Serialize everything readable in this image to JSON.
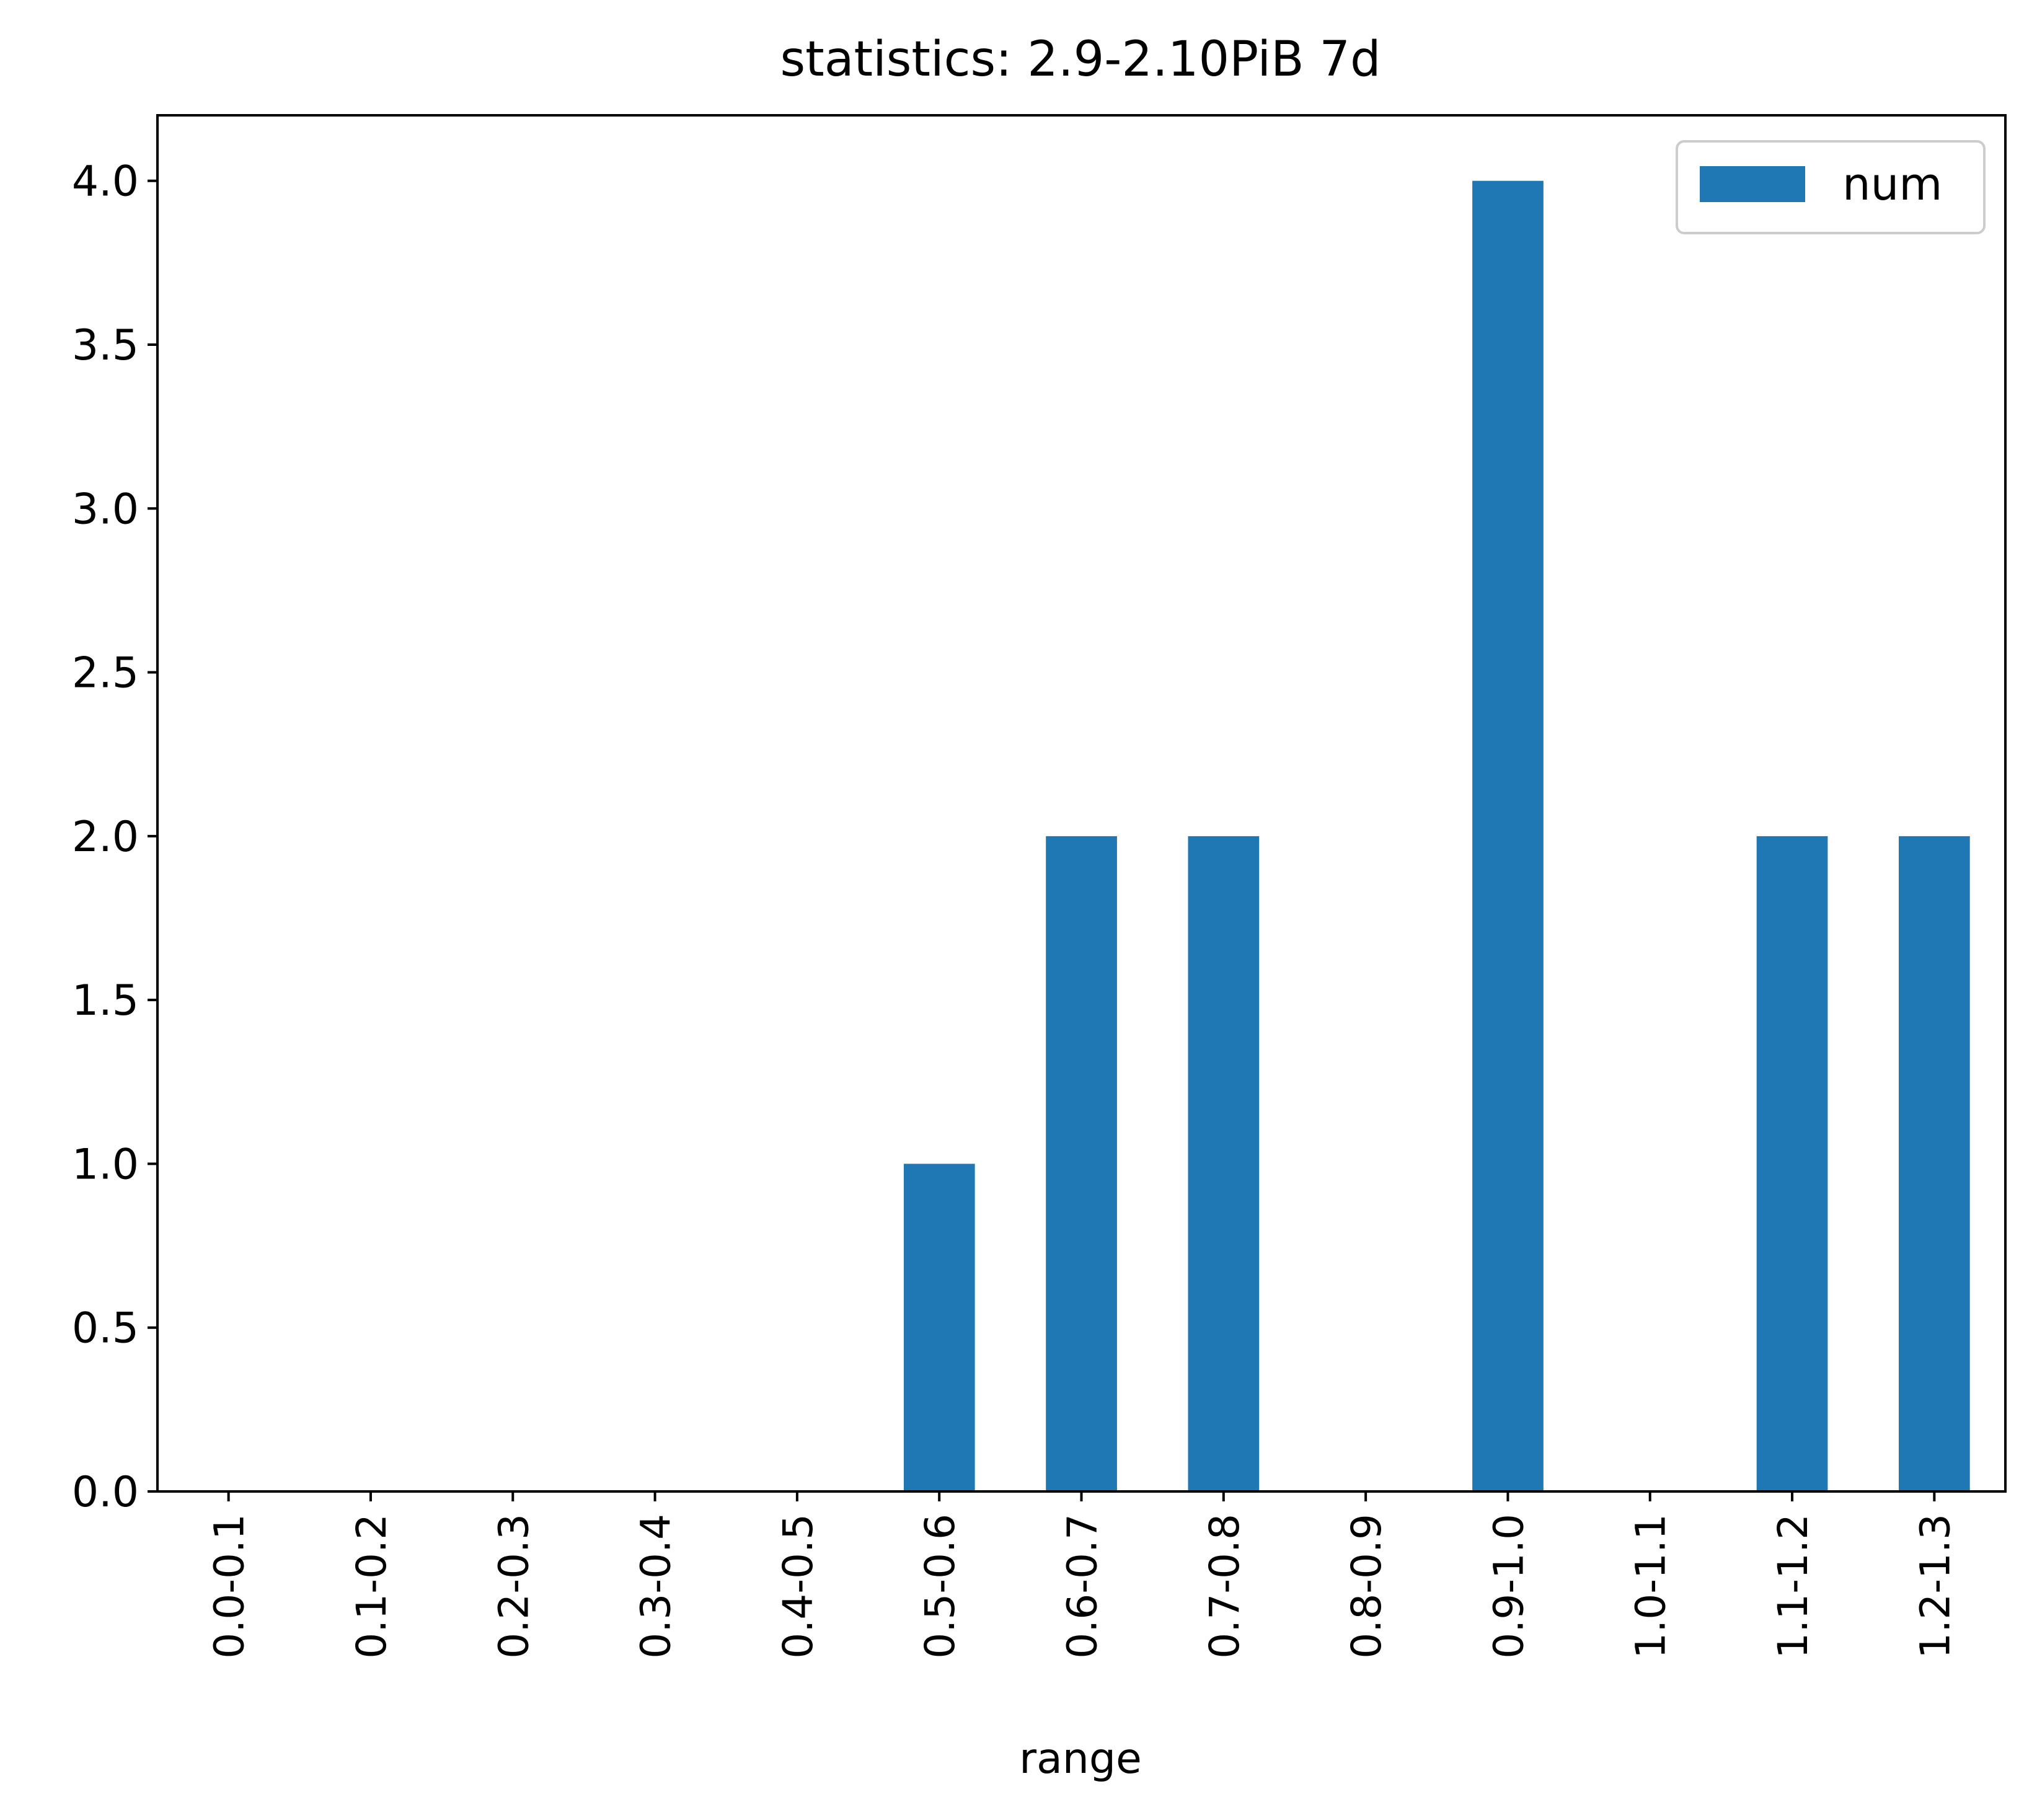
{
  "chart_data": {
    "type": "bar",
    "title": "statistics: 2.9-2.10PiB 7d",
    "xlabel": "range",
    "ylabel": "",
    "categories": [
      "0.0-0.1",
      "0.1-0.2",
      "0.2-0.3",
      "0.3-0.4",
      "0.4-0.5",
      "0.5-0.6",
      "0.6-0.7",
      "0.7-0.8",
      "0.8-0.9",
      "0.9-1.0",
      "1.0-1.1",
      "1.1-1.2",
      "1.2-1.3"
    ],
    "series": [
      {
        "name": "num",
        "values": [
          0,
          0,
          0,
          0,
          0,
          1,
          2,
          2,
          0,
          4,
          0,
          2,
          2
        ]
      }
    ],
    "ylim": [
      0,
      4.2
    ],
    "yticks": [
      0.0,
      0.5,
      1.0,
      1.5,
      2.0,
      2.5,
      3.0,
      3.5,
      4.0
    ],
    "ytick_labels": [
      "0.0",
      "0.5",
      "1.0",
      "1.5",
      "2.0",
      "2.5",
      "3.0",
      "3.5",
      "4.0"
    ],
    "grid": false,
    "legend_position": "top-right",
    "colors": {
      "bar": "#1f77b4",
      "axes": "#000000",
      "background": "#ffffff",
      "legend_border": "#cccccc"
    }
  }
}
